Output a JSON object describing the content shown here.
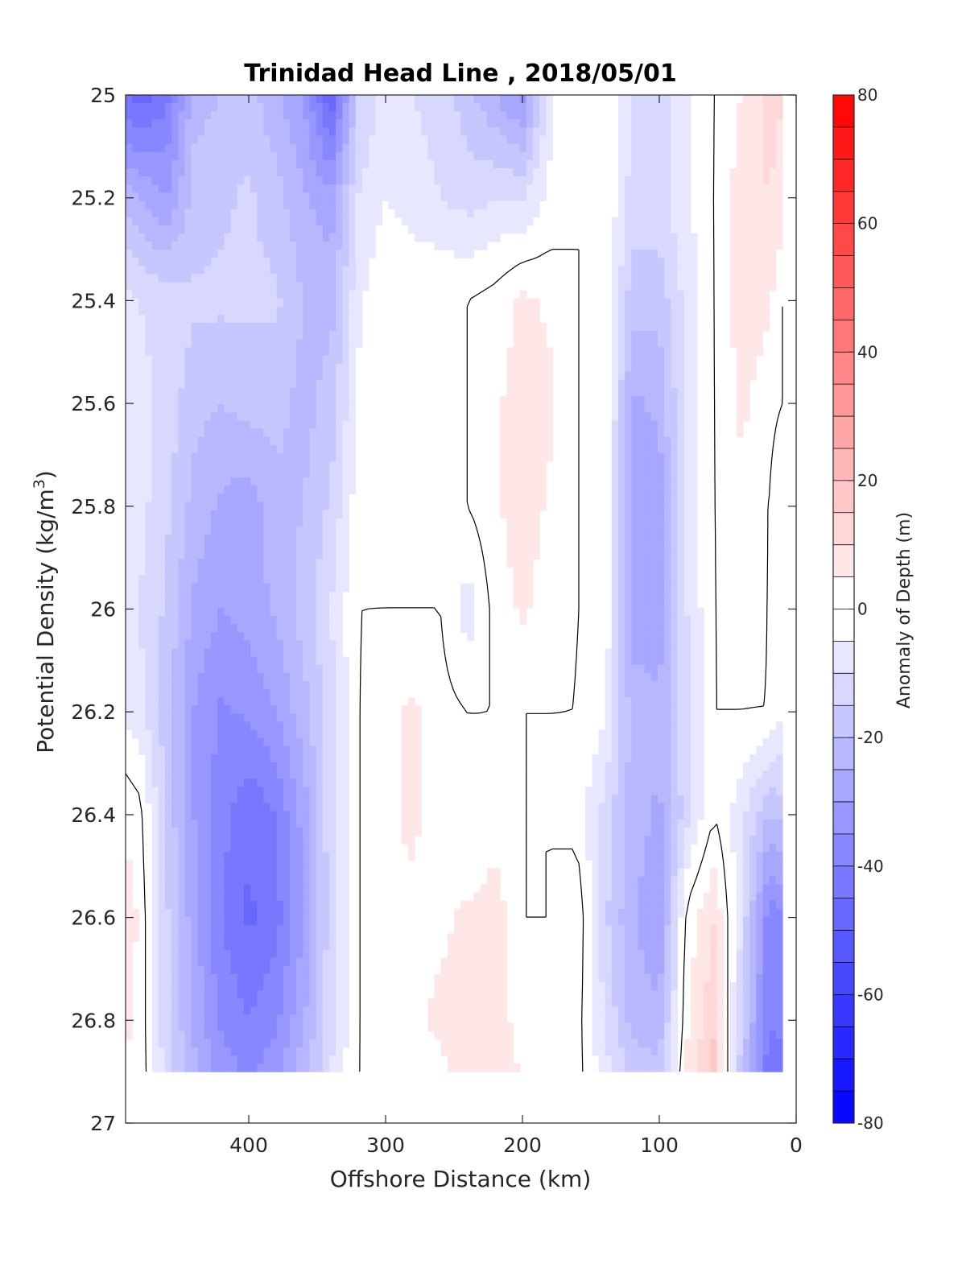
{
  "chart_data": {
    "type": "heatmap",
    "subtype": "filled-contour section",
    "title": "Trinidad Head Line , 2018/05/01",
    "xlabel": "Offshore Distance (km)",
    "ylabel": "Potential Density (kg/m",
    "ylabel_sup": "3",
    "ylabel_close": ")",
    "xlim": [
      490,
      0
    ],
    "ylim": [
      25,
      27
    ],
    "x_reversed": true,
    "y_reversed": true,
    "xticks": [
      400,
      300,
      200,
      100,
      0
    ],
    "xtick_labels": [
      "400",
      "300",
      "200",
      "100",
      "0"
    ],
    "yticks": [
      25,
      25.2,
      25.4,
      25.6,
      25.8,
      26,
      26.2,
      26.4,
      26.6,
      26.8,
      27
    ],
    "ytick_labels": [
      "25",
      "25.2",
      "25.4",
      "25.6",
      "25.8",
      "26",
      "26.2",
      "26.4",
      "26.6",
      "26.8",
      "27"
    ],
    "colorbar": {
      "label": "Anomaly of Depth (m)",
      "range": [
        -80,
        80
      ],
      "step": 5,
      "ticks": [
        80,
        60,
        40,
        20,
        0,
        -20,
        -40,
        -60,
        -80
      ],
      "tick_labels": [
        "80",
        "60",
        "40",
        "20",
        "0",
        "-20",
        "-40",
        "-60",
        "-80"
      ],
      "colormap": "blue-white-red",
      "low_color": "#0000ff",
      "mid_color": "#ffffff",
      "high_color": "#ff0000"
    },
    "data_x": [
      490,
      480,
      460,
      440,
      420,
      400,
      380,
      360,
      340,
      320,
      300,
      280,
      260,
      240,
      220,
      200,
      180,
      160,
      140,
      120,
      100,
      80,
      60,
      40,
      20,
      10
    ],
    "data_y": [
      25.0,
      25.2,
      25.4,
      25.6,
      25.8,
      26.0,
      26.2,
      26.4,
      26.6,
      26.8,
      26.9
    ],
    "anomaly_m": [
      [
        -45,
        -48,
        -42,
        -22,
        -20,
        -18,
        -24,
        -30,
        -50,
        -15,
        -8,
        -10,
        -12,
        -18,
        -25,
        -32,
        -6,
        0,
        0,
        -10,
        -14,
        -6,
        0,
        5,
        12,
        10
      ],
      [
        -22,
        -25,
        -30,
        -18,
        -16,
        -14,
        -18,
        -24,
        -28,
        -10,
        -5,
        -8,
        -10,
        -12,
        -10,
        -10,
        -4,
        0,
        0,
        -12,
        -12,
        -6,
        0,
        8,
        10,
        8
      ],
      [
        -8,
        -10,
        -12,
        -14,
        -14,
        -14,
        -14,
        -20,
        -22,
        -6,
        0,
        0,
        0,
        0,
        2,
        6,
        4,
        0,
        0,
        -18,
        -18,
        -8,
        0,
        8,
        6,
        0
      ],
      [
        -6,
        -8,
        -12,
        -18,
        -20,
        -18,
        -18,
        -22,
        -18,
        -4,
        0,
        0,
        0,
        0,
        4,
        8,
        6,
        0,
        0,
        -26,
        -24,
        -8,
        0,
        6,
        2,
        0
      ],
      [
        -6,
        -8,
        -14,
        -22,
        -26,
        -28,
        -22,
        -20,
        -14,
        -2,
        0,
        0,
        0,
        0,
        4,
        8,
        4,
        0,
        0,
        -28,
        -28,
        -8,
        0,
        4,
        0,
        -6
      ],
      [
        -8,
        -10,
        -16,
        -26,
        -30,
        -28,
        -24,
        -18,
        -10,
        0,
        0,
        0,
        0,
        -8,
        2,
        6,
        2,
        0,
        0,
        -28,
        -28,
        -10,
        0,
        2,
        0,
        -6
      ],
      [
        -6,
        -8,
        -18,
        -30,
        -36,
        -34,
        -30,
        -22,
        -12,
        0,
        4,
        6,
        2,
        0,
        0,
        0,
        0,
        0,
        -4,
        -22,
        -24,
        -12,
        0,
        0,
        0,
        -4
      ],
      [
        4,
        2,
        -16,
        -30,
        -38,
        -44,
        -40,
        -28,
        -12,
        0,
        4,
        6,
        2,
        0,
        2,
        0,
        0,
        -2,
        -12,
        -22,
        -26,
        -12,
        0,
        -8,
        -20,
        -18
      ],
      [
        8,
        4,
        -14,
        -28,
        -40,
        -46,
        -42,
        -30,
        -12,
        0,
        4,
        4,
        4,
        6,
        8,
        0,
        0,
        4,
        -14,
        -24,
        -30,
        2,
        10,
        -10,
        -38,
        -36
      ],
      [
        6,
        4,
        -14,
        -26,
        -36,
        -40,
        -36,
        -26,
        -12,
        0,
        4,
        4,
        6,
        8,
        8,
        2,
        0,
        2,
        -10,
        -22,
        -24,
        4,
        14,
        -14,
        -40,
        -38
      ],
      [
        4,
        4,
        -12,
        -24,
        -32,
        -36,
        -32,
        -22,
        -10,
        0,
        4,
        4,
        4,
        8,
        10,
        4,
        0,
        2,
        -8,
        -16,
        -18,
        6,
        18,
        -18,
        -44,
        -42
      ]
    ]
  }
}
